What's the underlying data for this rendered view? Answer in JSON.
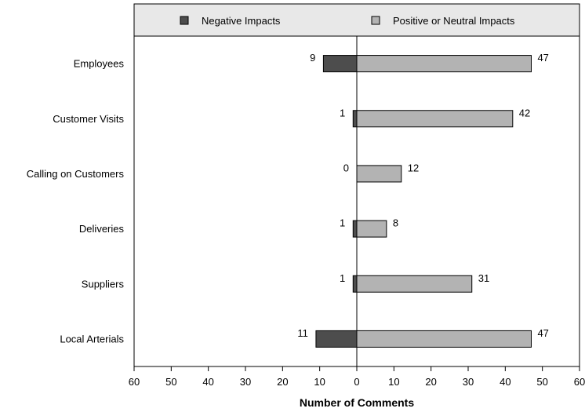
{
  "chart_data": {
    "type": "bar",
    "orientation": "horizontal",
    "diverging": true,
    "categories": [
      "Employees",
      "Customer Visits",
      "Calling on Customers",
      "Deliveries",
      "Suppliers",
      "Local Arterials"
    ],
    "series": [
      {
        "name": "Negative Impacts",
        "values": [
          9,
          1,
          0,
          1,
          1,
          11
        ],
        "color": "#4d4d4d",
        "direction": "left"
      },
      {
        "name": "Positive or Neutral Impacts",
        "values": [
          47,
          42,
          12,
          8,
          31,
          47
        ],
        "color": "#b3b3b3",
        "direction": "right"
      }
    ],
    "xlabel": "Number of Comments",
    "ylabel": "",
    "xlim": [
      -60,
      60
    ],
    "x_ticks": [
      "60",
      "50",
      "40",
      "30",
      "20",
      "10",
      "0",
      "10",
      "20",
      "30",
      "40",
      "50",
      "60"
    ],
    "grid": false,
    "legend_placement": "top"
  }
}
